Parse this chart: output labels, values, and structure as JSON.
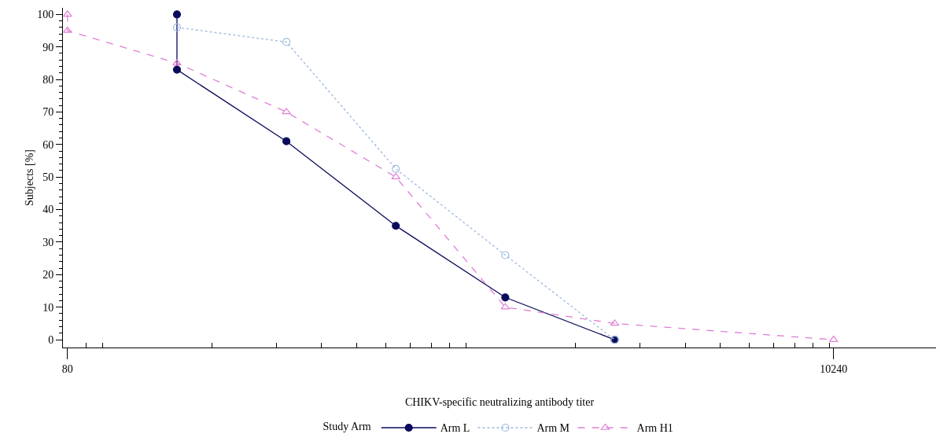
{
  "chart_data": {
    "type": "line",
    "xlabel": "CHIKV-specific neutralizing antibody titer",
    "ylabel": "Subjects [%]",
    "legend_title": "Study Arm",
    "legend": "bottom",
    "log": "x",
    "grid": false,
    "xlim": [
      77.7,
      19600
    ],
    "xticks": [
      80,
      {
        "value": 90,
        "label": null
      },
      {
        "value": 100,
        "label": null
      },
      {
        "value": 200,
        "label": null
      },
      {
        "value": 300,
        "label": null
      },
      {
        "value": 400,
        "label": null
      },
      {
        "value": 500,
        "label": null
      },
      {
        "value": 600,
        "label": null
      },
      {
        "value": 700,
        "label": null
      },
      {
        "value": 800,
        "label": null
      },
      {
        "value": 900,
        "label": null
      },
      {
        "value": 1000,
        "label": null
      },
      {
        "value": 2000,
        "label": null
      },
      {
        "value": 3000,
        "label": null
      },
      {
        "value": 4000,
        "label": null
      },
      {
        "value": 5000,
        "label": null
      },
      {
        "value": 6000,
        "label": null
      },
      {
        "value": 7000,
        "label": null
      },
      {
        "value": 8000,
        "label": null
      },
      {
        "value": 9000,
        "label": null
      },
      {
        "value": 10000,
        "label": null
      },
      10240
    ],
    "ylim": [
      -2.4,
      102
    ],
    "yticks": [
      0,
      {
        "value": 2,
        "label": null
      },
      {
        "value": 4,
        "label": null
      },
      {
        "value": 6,
        "label": null
      },
      {
        "value": 8,
        "label": null
      },
      10,
      {
        "value": 12,
        "label": null
      },
      {
        "value": 14,
        "label": null
      },
      {
        "value": 16,
        "label": null
      },
      {
        "value": 18,
        "label": null
      },
      20,
      {
        "value": 22,
        "label": null
      },
      {
        "value": 24,
        "label": null
      },
      {
        "value": 26,
        "label": null
      },
      {
        "value": 28,
        "label": null
      },
      30,
      {
        "value": 32,
        "label": null
      },
      {
        "value": 34,
        "label": null
      },
      {
        "value": 36,
        "label": null
      },
      {
        "value": 38,
        "label": null
      },
      40,
      {
        "value": 42,
        "label": null
      },
      {
        "value": 44,
        "label": null
      },
      {
        "value": 46,
        "label": null
      },
      {
        "value": 48,
        "label": null
      },
      50,
      {
        "value": 52,
        "label": null
      },
      {
        "value": 54,
        "label": null
      },
      {
        "value": 56,
        "label": null
      },
      {
        "value": 58,
        "label": null
      },
      60,
      {
        "value": 62,
        "label": null
      },
      {
        "value": 64,
        "label": null
      },
      {
        "value": 66,
        "label": null
      },
      {
        "value": 68,
        "label": null
      },
      70,
      {
        "value": 72,
        "label": null
      },
      {
        "value": 74,
        "label": null
      },
      {
        "value": 76,
        "label": null
      },
      {
        "value": 78,
        "label": null
      },
      80,
      {
        "value": 82,
        "label": null
      },
      {
        "value": 84,
        "label": null
      },
      {
        "value": 86,
        "label": null
      },
      {
        "value": 88,
        "label": null
      },
      90,
      {
        "value": 92,
        "label": null
      },
      {
        "value": 94,
        "label": null
      },
      {
        "value": 96,
        "label": null
      },
      {
        "value": 98,
        "label": null
      },
      100
    ],
    "series": [
      {
        "name": "Arm L",
        "color": "#0b0b5c",
        "marker": "circle",
        "line_style": "solid",
        "x": [
          160,
          160,
          320,
          640,
          1280,
          2560
        ],
        "values": [
          100,
          83,
          61,
          35,
          13,
          0
        ]
      },
      {
        "name": "Arm M",
        "color": "#9db8e0",
        "marker": "circle",
        "line_style": "dotted",
        "x": [
          160,
          320,
          640,
          1280,
          2560
        ],
        "values": [
          96,
          91.5,
          52.5,
          26,
          0
        ]
      },
      {
        "name": "Arm H1",
        "color": "#e07fd6",
        "marker": "triangle",
        "line_style": "dashed",
        "x": [
          80,
          80,
          160,
          320,
          640,
          1280,
          2560,
          10240
        ],
        "values": [
          100,
          95,
          85,
          70,
          50,
          10,
          5,
          0
        ]
      }
    ]
  }
}
